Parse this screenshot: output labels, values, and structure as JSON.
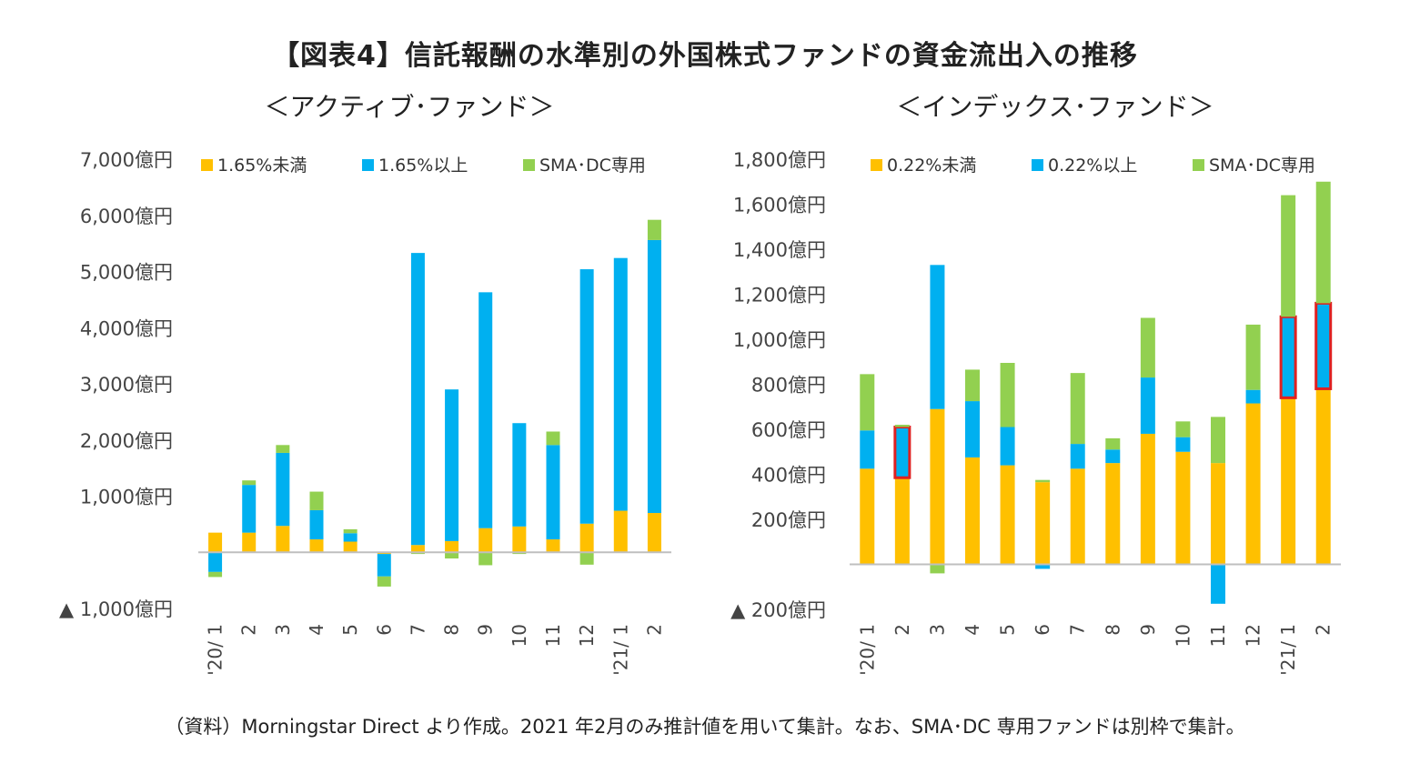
{
  "title": "【図表4】信託報酬の水準別の外国株式ファンドの資金流出入の推移",
  "source": "（資料）Morningstar Direct より作成。2021 年2月のみ推計値を用いて集計。なお、SMA･DC 専用ファンドは別枠で集計。",
  "colors": {
    "orange": "#FFC000",
    "blue": "#00B0F0",
    "green": "#92D050",
    "highlight": "#E02020",
    "axis": "#BFBFBF"
  },
  "chart_data": [
    {
      "type": "bar",
      "stacked": true,
      "title": "＜アクティブ･ファンド＞",
      "categories": [
        "'20/ 1",
        "2",
        "3",
        "4",
        "5",
        "6",
        "7",
        "8",
        "9",
        "10",
        "11",
        "12",
        "'21/ 1",
        "2"
      ],
      "ylim": [
        -1000,
        7000
      ],
      "yticks": [
        -1000,
        1000,
        2000,
        3000,
        4000,
        5000,
        6000,
        7000
      ],
      "ytick_labels": [
        "▲ 1,000億円",
        "1,000億円",
        "2,000億円",
        "3,000億円",
        "4,000億円",
        "5,000億円",
        "6,000億円",
        "7,000億円"
      ],
      "legend": [
        "1.65%未満",
        "1.65%以上",
        "SMA･DC専用"
      ],
      "series": [
        {
          "name": "1.65%未満",
          "values": [
            350,
            350,
            470,
            230,
            190,
            -30,
            130,
            200,
            430,
            460,
            230,
            510,
            740,
            700
          ]
        },
        {
          "name": "1.65%以上",
          "values": [
            -350,
            850,
            1300,
            520,
            150,
            -400,
            5200,
            2700,
            4200,
            1840,
            1680,
            4530,
            4500,
            4860
          ]
        },
        {
          "name": "SMA･DC専用",
          "values": [
            -90,
            80,
            140,
            330,
            70,
            -180,
            -30,
            -110,
            -230,
            -30,
            240,
            -220,
            0,
            360
          ]
        }
      ]
    },
    {
      "type": "bar",
      "stacked": true,
      "title": "＜インデックス･ファンド＞",
      "categories": [
        "'20/ 1",
        "2",
        "3",
        "4",
        "5",
        "6",
        "7",
        "8",
        "9",
        "10",
        "11",
        "12",
        "'21/ 1",
        "2"
      ],
      "ylim": [
        -200,
        1800
      ],
      "yticks": [
        -200,
        200,
        400,
        600,
        800,
        1000,
        1200,
        1400,
        1600,
        1800
      ],
      "ytick_labels": [
        "▲ 200億円",
        "200億円",
        "400億円",
        "600億円",
        "800億円",
        "1,000億円",
        "1,200億円",
        "1,400億円",
        "1,600億円",
        "1,800億円"
      ],
      "legend": [
        "0.22%未満",
        "0.22%以上",
        "SMA･DC専用"
      ],
      "highlighted_series": "0.22%以上",
      "highlighted_categories": [
        "'21/ 1",
        "2"
      ],
      "series": [
        {
          "name": "0.22%未満",
          "values": [
            425,
            385,
            690,
            475,
            440,
            365,
            425,
            450,
            580,
            500,
            450,
            715,
            740,
            780
          ]
        },
        {
          "name": "0.22%以上",
          "values": [
            170,
            225,
            640,
            250,
            170,
            -20,
            110,
            60,
            250,
            65,
            -175,
            60,
            360,
            380
          ]
        },
        {
          "name": "SMA･DC専用",
          "values": [
            250,
            10,
            -40,
            140,
            285,
            10,
            315,
            50,
            265,
            70,
            205,
            290,
            540,
            540
          ]
        }
      ]
    }
  ]
}
